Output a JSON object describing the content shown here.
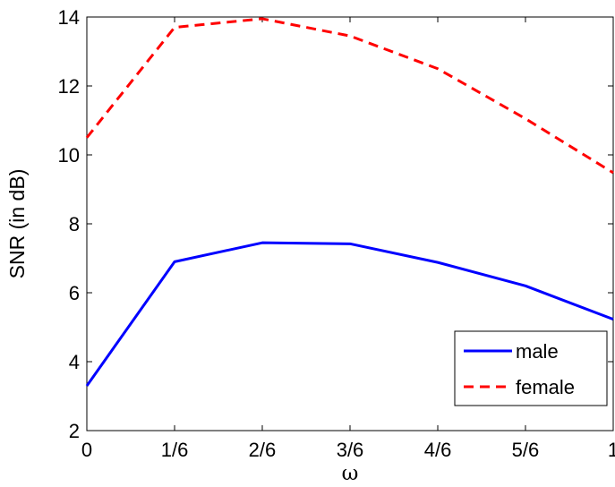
{
  "chart_data": {
    "type": "line",
    "title": "",
    "xlabel": "ω",
    "ylabel": "SNR (in dB)",
    "categories": [
      "0",
      "1/6",
      "2/6",
      "3/6",
      "4/6",
      "5/6",
      "1"
    ],
    "x": [
      0,
      0.1667,
      0.3333,
      0.5,
      0.6667,
      0.8333,
      1
    ],
    "ylim": [
      2,
      14
    ],
    "yticks": [
      "2",
      "4",
      "6",
      "8",
      "10",
      "12",
      "14"
    ],
    "grid": false,
    "legend_position": "bottom-right",
    "series": [
      {
        "name": "male",
        "color": "#0000ff",
        "style": "solid",
        "values": [
          3.3,
          6.9,
          7.45,
          7.42,
          6.88,
          6.2,
          5.23
        ]
      },
      {
        "name": "female",
        "color": "#ff0000",
        "style": "dashed",
        "values": [
          10.5,
          13.7,
          13.95,
          13.45,
          12.5,
          11.05,
          9.48
        ]
      }
    ]
  }
}
